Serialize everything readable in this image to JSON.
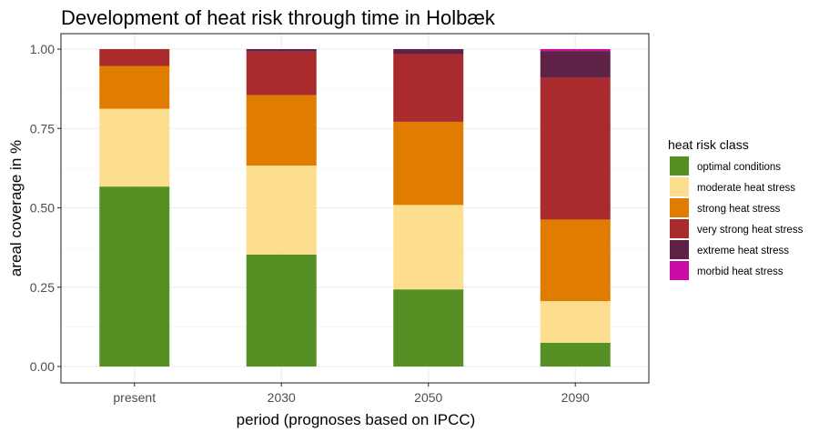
{
  "chart_data": {
    "type": "bar",
    "stacked": true,
    "title": "Development of heat risk through time in Holbæk",
    "xlabel": "period (prognoses based on IPCC)",
    "ylabel": "areal coverage in %",
    "categories": [
      "present",
      "2030",
      "2050",
      "2090"
    ],
    "ylim": [
      0,
      1.04
    ],
    "yticks": [
      "0.00",
      "0.25",
      "0.50",
      "0.75",
      "1.00"
    ],
    "grid": true,
    "legend_title": "heat risk class",
    "legend_position": "right",
    "series": [
      {
        "name": "optimal conditions",
        "color": "#568f23",
        "values": [
          0.567,
          0.353,
          0.243,
          0.075
        ]
      },
      {
        "name": "moderate heat stress",
        "color": "#fdde8f",
        "values": [
          0.245,
          0.28,
          0.266,
          0.131
        ]
      },
      {
        "name": "strong heat stress",
        "color": "#e07c00",
        "values": [
          0.135,
          0.222,
          0.262,
          0.257
        ]
      },
      {
        "name": "very strong heat stress",
        "color": "#a92b2d",
        "values": [
          0.053,
          0.137,
          0.213,
          0.447
        ]
      },
      {
        "name": "extreme heat stress",
        "color": "#5d2245",
        "values": [
          0.0,
          0.008,
          0.016,
          0.084
        ]
      },
      {
        "name": "morbid heat stress",
        "color": "#cc0aa8",
        "values": [
          0.0,
          0.0,
          0.0,
          0.006
        ]
      }
    ]
  }
}
